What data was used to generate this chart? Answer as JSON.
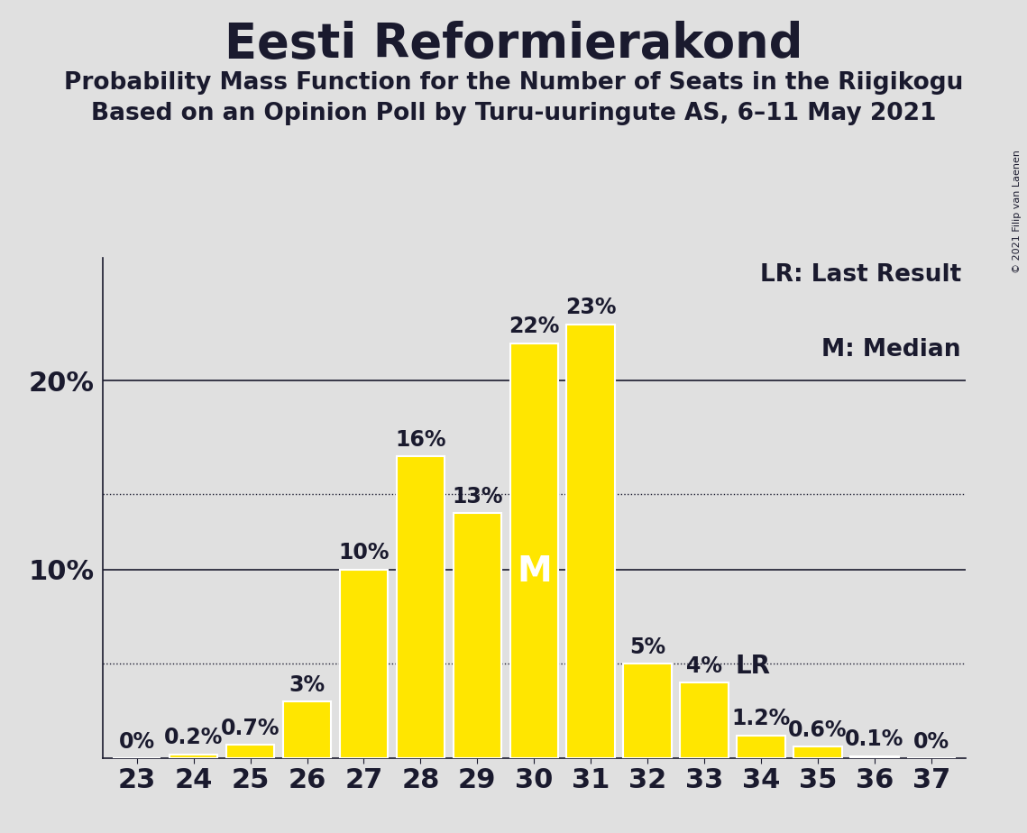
{
  "title": "Eesti Reformierakond",
  "subtitle1": "Probability Mass Function for the Number of Seats in the Riigikogu",
  "subtitle2": "Based on an Opinion Poll by Turu-uuringute AS, 6–11 May 2021",
  "copyright": "© 2021 Filip van Laenen",
  "legend_lr": "LR: Last Result",
  "legend_m": "M: Median",
  "seats": [
    23,
    24,
    25,
    26,
    27,
    28,
    29,
    30,
    31,
    32,
    33,
    34,
    35,
    36,
    37
  ],
  "probabilities": [
    0.0,
    0.2,
    0.7,
    3.0,
    10.0,
    16.0,
    13.0,
    22.0,
    23.0,
    5.0,
    4.0,
    1.2,
    0.6,
    0.1,
    0.0
  ],
  "bar_color": "#FFE600",
  "bar_edge_color": "#FFFFFF",
  "background_color": "#E0E0E0",
  "text_color": "#1a1a2e",
  "median_seat": 30,
  "last_result_seat": 33,
  "dotted_line_values": [
    5.0,
    14.0
  ],
  "solid_line_values": [
    10.0,
    20.0
  ],
  "ylim": [
    0,
    26.5
  ],
  "ylabel_ticks": [
    10,
    20
  ],
  "title_fontsize": 38,
  "subtitle_fontsize": 19,
  "tick_fontsize": 22,
  "bar_label_fontsize": 17,
  "median_label_fontsize": 28,
  "lr_label_fontsize": 20,
  "legend_fontsize": 19
}
